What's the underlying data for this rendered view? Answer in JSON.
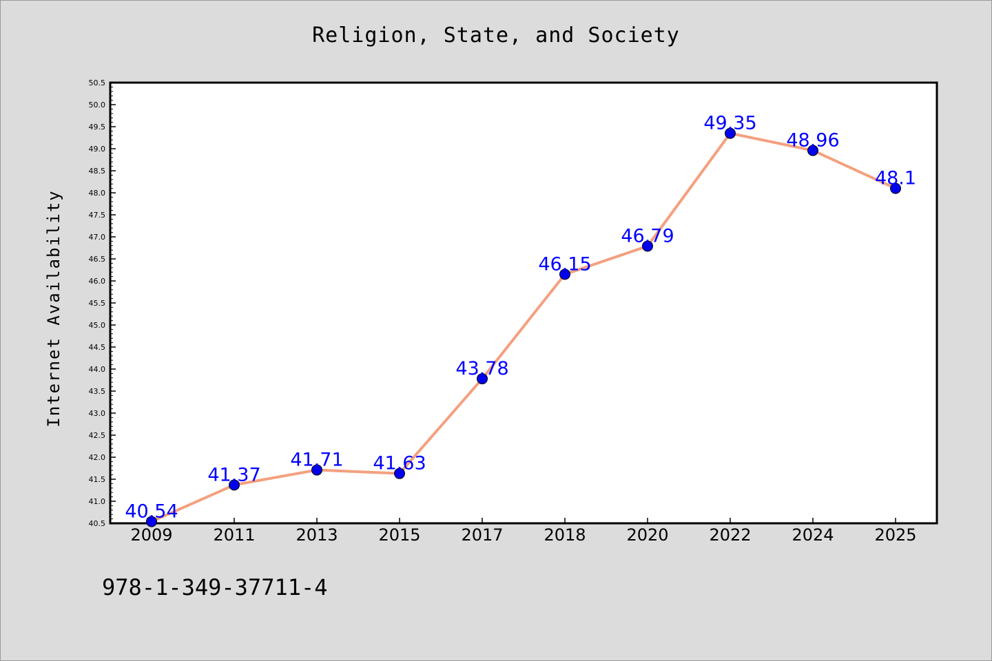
{
  "chart_data": {
    "type": "line",
    "title": "Religion, State, and Society",
    "ylabel": "Internet Availability",
    "xlabel": "",
    "categories": [
      "2009",
      "2011",
      "2013",
      "2015",
      "2017",
      "2018",
      "2020",
      "2022",
      "2024",
      "2025"
    ],
    "series": [
      {
        "values": [
          40.54,
          41.37,
          41.71,
          41.63,
          43.78,
          46.15,
          46.79,
          49.35,
          48.96,
          48.1
        ],
        "value_labels": [
          "40.54",
          "41.37",
          "41.71",
          "41.63",
          "43.78",
          "46.15",
          "46.79",
          "49.35",
          "48.96",
          "48.1"
        ],
        "line_color": "#f4a07f",
        "marker_color": "#0000ee",
        "label_color": "#0000ff"
      }
    ],
    "ylim": [
      40.5,
      50.5
    ],
    "yticks": [
      "40.5",
      "41.0",
      "41.5",
      "42.0",
      "42.5",
      "43.0",
      "43.5",
      "44.0",
      "44.5",
      "45.0",
      "45.5",
      "46.0",
      "46.5",
      "47.0",
      "47.5",
      "48.0",
      "48.5",
      "49.0",
      "49.5",
      "50.0",
      "50.5"
    ],
    "grid": false,
    "legend": "none"
  },
  "footer_text": "978-1-349-37711-4",
  "colors": {
    "page_background": "#dcdcdc",
    "plot_background": "#ffffff"
  }
}
